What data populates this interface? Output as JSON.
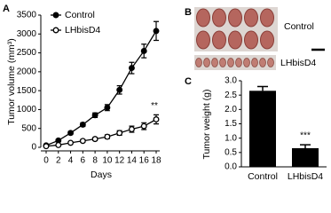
{
  "chart_data": [
    {
      "type": "line",
      "panel": "A",
      "x": [
        0,
        2,
        4,
        6,
        8,
        10,
        12,
        14,
        16,
        18
      ],
      "xlabel": "Days",
      "ylabel": "Tumor volume (mm³)",
      "xlim": [
        0,
        18
      ],
      "xticks": [
        0,
        2,
        4,
        6,
        8,
        10,
        12,
        14,
        16,
        18
      ],
      "ylim": [
        0,
        3500
      ],
      "yticks": [
        0,
        500,
        1000,
        1500,
        2000,
        2500,
        3000,
        3500
      ],
      "series": [
        {
          "name": "Control",
          "color": "#000000",
          "marker": "filled",
          "values": [
            50,
            180,
            380,
            600,
            850,
            1050,
            1520,
            2100,
            2550,
            3080
          ],
          "errors": [
            20,
            30,
            40,
            50,
            60,
            80,
            110,
            150,
            180,
            250
          ]
        },
        {
          "name": "LHbisD4",
          "color": "#000000",
          "marker": "open",
          "values": [
            30,
            60,
            120,
            170,
            220,
            280,
            380,
            480,
            560,
            740
          ],
          "errors": [
            15,
            20,
            30,
            35,
            40,
            50,
            60,
            80,
            90,
            120
          ]
        }
      ],
      "annotation": "**"
    },
    {
      "type": "photo",
      "panel": "B",
      "rows": [
        "Control",
        "LHbisD4"
      ]
    },
    {
      "type": "bar",
      "panel": "C",
      "categories": [
        "Control",
        "LHbisD4"
      ],
      "values": [
        2.65,
        0.65
      ],
      "errors": [
        0.15,
        0.12
      ],
      "color": "#000000",
      "ylabel": "Tumor weight (g)",
      "ylim": [
        0,
        3
      ],
      "yticks": [
        {
          "value": 0,
          "label": "0.0"
        },
        0.5,
        {
          "value": 1,
          "label": "1.0"
        },
        1.5,
        {
          "value": 2,
          "label": "2.0"
        },
        2.5,
        {
          "value": 3,
          "label": "3.0"
        }
      ],
      "annotation": "***"
    }
  ]
}
